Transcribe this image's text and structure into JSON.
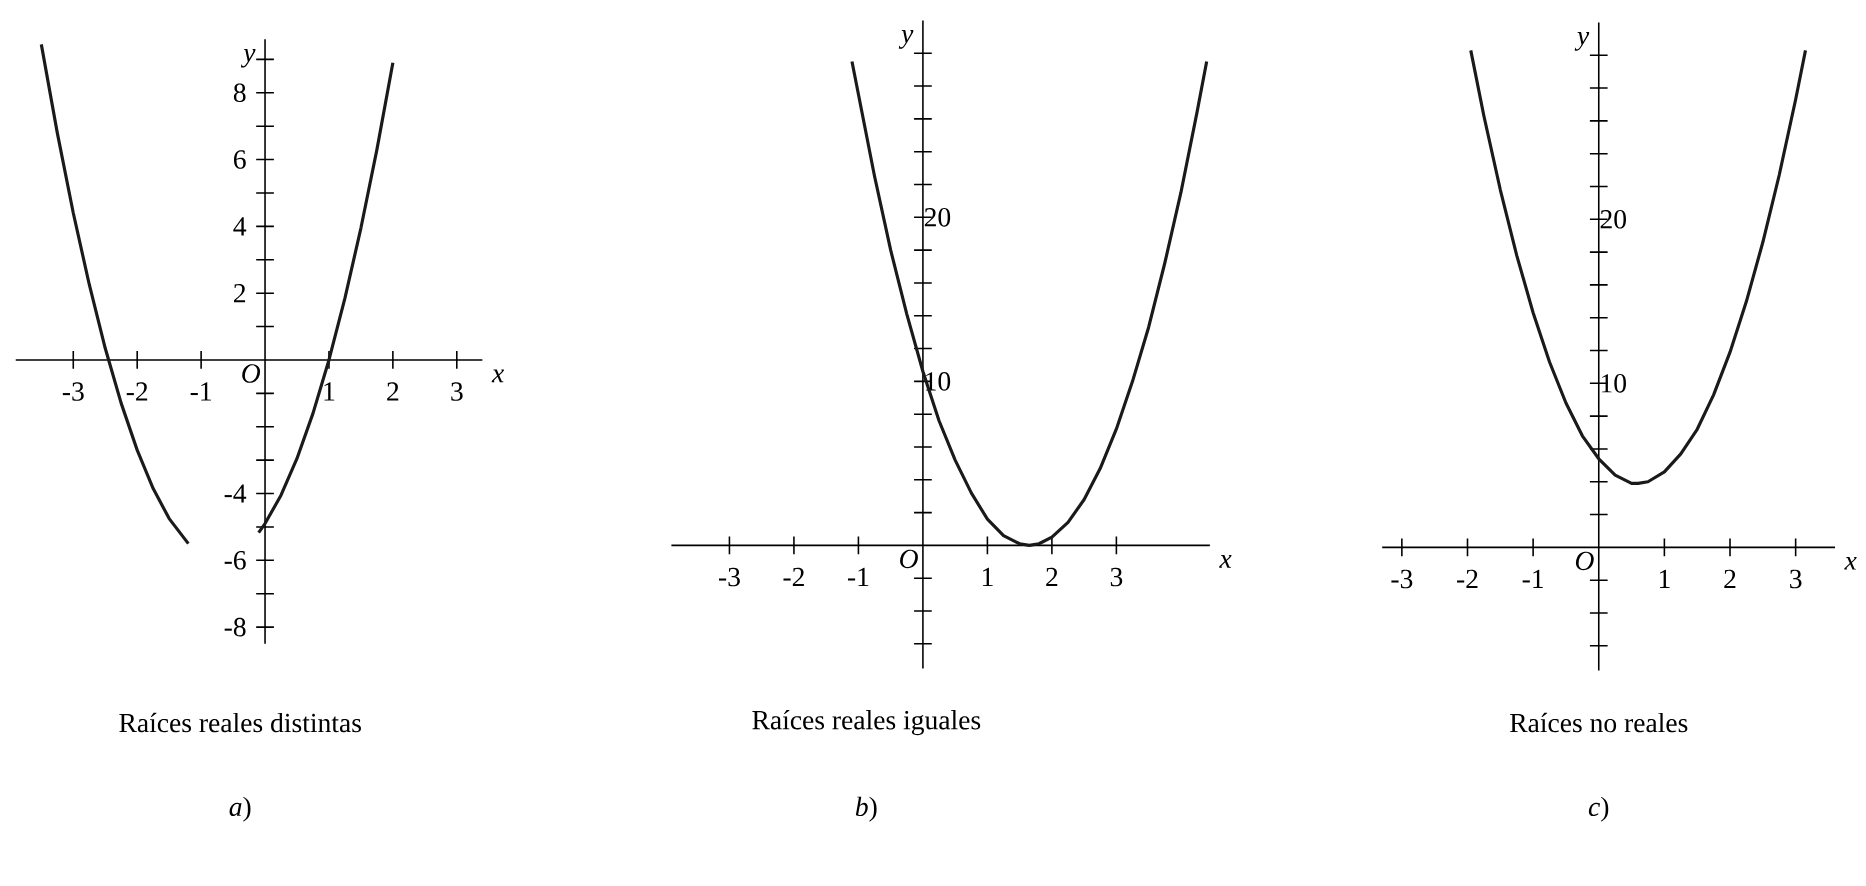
{
  "chart_data": [
    {
      "type": "line",
      "xlabel": "x",
      "ylabel": "y",
      "xlim": [
        -3.9,
        3.4
      ],
      "ylim": [
        -8.5,
        9.6
      ],
      "xticks": [
        -3,
        -2,
        -1,
        1,
        2,
        3
      ],
      "yticks": [
        -8,
        {
          "value": -7,
          "label": null
        },
        -6,
        {
          "value": -5,
          "label": null
        },
        -4,
        {
          "value": -3,
          "label": null
        },
        {
          "value": -2,
          "label": null
        },
        {
          "value": -1,
          "label": null
        },
        {
          "value": 1,
          "label": null
        },
        2,
        {
          "value": 3,
          "label": null
        },
        4,
        {
          "value": 5,
          "label": null
        },
        6,
        {
          "value": 7,
          "label": null
        },
        8,
        {
          "value": 9,
          "label": null
        }
      ],
      "color": "#1a1a1a",
      "x": [
        -3.5,
        -3.25,
        -3,
        -2.75,
        -2.5,
        -2.25,
        -2,
        -1.75,
        -1.5,
        -1.2,
        -0.65,
        -0.1,
        0,
        0.25,
        0.5,
        0.75,
        1,
        1.25,
        1.5,
        1.75,
        2
      ],
      "values": [
        9.45,
        6.8,
        4.4,
        2.26,
        0.35,
        -1.3,
        -2.7,
        -3.85,
        -4.75,
        -5.5,
        null,
        -5.17,
        -4.9,
        -4.05,
        -2.95,
        -1.6,
        0,
        1.85,
        3.95,
        6.3,
        8.9
      ],
      "annotations": [
        "O",
        "Raíces reales distintas",
        "*a*)"
      ]
    },
    {
      "type": "line",
      "xlabel": "x",
      "ylabel": "y",
      "xlim": [
        -3.9,
        4.45
      ],
      "ylim": [
        -7.5,
        32
      ],
      "xticks": [
        -3,
        -2,
        -1,
        1,
        2,
        3
      ],
      "yticks": [
        {
          "value": -6,
          "label": null
        },
        {
          "value": -4,
          "label": null
        },
        {
          "value": -2,
          "label": null
        },
        {
          "value": 2,
          "label": null
        },
        {
          "value": 4,
          "label": null
        },
        {
          "value": 6,
          "label": null
        },
        {
          "value": 8,
          "label": null
        },
        10,
        {
          "value": 12,
          "label": null
        },
        {
          "value": 14,
          "label": null
        },
        {
          "value": 16,
          "label": null
        },
        {
          "value": 18,
          "label": null
        },
        20,
        {
          "value": 22,
          "label": null
        },
        {
          "value": 24,
          "label": null
        },
        {
          "value": 26,
          "label": null
        },
        {
          "value": 28,
          "label": null
        },
        {
          "value": 30,
          "label": null
        }
      ],
      "color": "#1a1a1a",
      "x": [
        -1.1,
        -0.75,
        -0.5,
        -0.25,
        0,
        0.25,
        0.5,
        0.75,
        1,
        1.25,
        1.5,
        1.65,
        1.8,
        2,
        2.25,
        2.5,
        2.75,
        3,
        3.25,
        3.5,
        3.75,
        4,
        4.25,
        4.4
      ],
      "values": [
        29.5,
        22.5,
        18.0,
        14.1,
        10.6,
        7.6,
        5.2,
        3.2,
        1.6,
        0.6,
        0.1,
        0,
        0.1,
        0.5,
        1.4,
        2.8,
        4.7,
        7.1,
        10.0,
        13.3,
        17.2,
        21.5,
        26.4,
        29.5
      ],
      "annotations": [
        "O",
        "Raíces reales iguales",
        "*b*)"
      ]
    },
    {
      "type": "line",
      "xlabel": "x",
      "ylabel": "y",
      "xlim": [
        -3.3,
        3.6
      ],
      "ylim": [
        -7.5,
        32
      ],
      "xticks": [
        -3,
        -2,
        -1,
        1,
        2,
        3
      ],
      "yticks": [
        {
          "value": -6,
          "label": null
        },
        {
          "value": -4,
          "label": null
        },
        {
          "value": -2,
          "label": null
        },
        {
          "value": 2,
          "label": null
        },
        {
          "value": 4,
          "label": null
        },
        {
          "value": 6,
          "label": null
        },
        {
          "value": 8,
          "label": null
        },
        10,
        {
          "value": 12,
          "label": null
        },
        {
          "value": 14,
          "label": null
        },
        {
          "value": 16,
          "label": null
        },
        {
          "value": 18,
          "label": null
        },
        20,
        {
          "value": 22,
          "label": null
        },
        {
          "value": 24,
          "label": null
        },
        {
          "value": 26,
          "label": null
        },
        {
          "value": 28,
          "label": null
        },
        {
          "value": 30,
          "label": null
        }
      ],
      "color": "#1a1a1a",
      "x": [
        -1.95,
        -1.75,
        -1.5,
        -1.25,
        -1,
        -0.75,
        -0.5,
        -0.25,
        0,
        0.25,
        0.5,
        0.6,
        0.75,
        1,
        1.25,
        1.5,
        1.75,
        2,
        2.25,
        2.5,
        2.75,
        3,
        3.15
      ],
      "values": [
        30.3,
        26.3,
        21.8,
        17.8,
        14.3,
        11.3,
        8.8,
        6.8,
        5.4,
        4.4,
        3.9,
        3.9,
        4.0,
        4.6,
        5.7,
        7.2,
        9.3,
        11.9,
        15.0,
        18.6,
        22.7,
        27.3,
        30.3
      ],
      "annotations": [
        "O",
        "Raíces no reales",
        "*c*)"
      ]
    }
  ]
}
